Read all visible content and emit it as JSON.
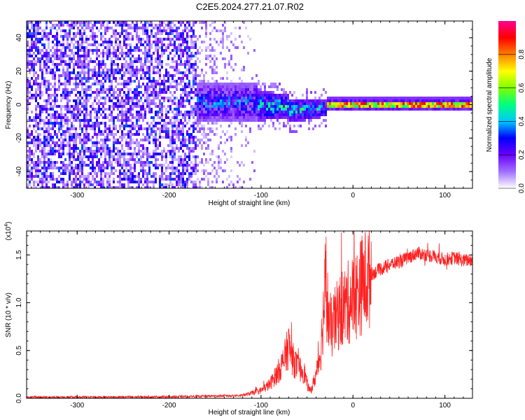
{
  "chart_data": [
    {
      "type": "heatmap",
      "title": "C2E5.2024.277.21.07.R02",
      "xlabel": "Height of straight line (km)",
      "ylabel": "Frequency (Hz)",
      "xlim": [
        -355,
        130
      ],
      "ylim": [
        -50,
        50
      ],
      "xticks": [
        -300,
        -200,
        -100,
        0,
        100
      ],
      "yticks": [
        -40,
        -20,
        0,
        20,
        40
      ],
      "colorbar": {
        "label": "Normalized spectral amplitude",
        "range": [
          0,
          1
        ],
        "ticks": [
          "0.0",
          "0.2",
          "0.4",
          "0.6",
          "0.8"
        ],
        "colors": [
          "#ffffff",
          "#a070ff",
          "#6a00ff",
          "#0000ff",
          "#00c8ff",
          "#00ff80",
          "#7fff00",
          "#ffff00",
          "#ff8000",
          "#ff0000",
          "#ff0090"
        ]
      },
      "regions": [
        {
          "x": [
            -355,
            -170
          ],
          "description": "broadband noise, amplitude 0.05-0.35"
        },
        {
          "x": [
            -170,
            -30
          ],
          "center_hz": 0,
          "peak_amplitude": 0.55
        },
        {
          "x": [
            -30,
            130
          ],
          "center_hz": 1,
          "peak_amplitude": 0.95
        }
      ]
    },
    {
      "type": "line",
      "xlabel": "Height of straight line (km)",
      "ylabel": "SNR (10 * v/v)",
      "yscale_label": "(x10",
      "yscale_exp": "4",
      "xlim": [
        -355,
        130
      ],
      "ylim": [
        0,
        17500
      ],
      "xticks": [
        -300,
        -200,
        -100,
        0,
        100
      ],
      "yticks": [
        0,
        5000,
        10000,
        15000
      ],
      "ytick_labels": [
        "0.0",
        "0.5",
        "1.0",
        "1.5"
      ],
      "color": "#ff2020",
      "series": [
        {
          "x": [
            -355,
            -200,
            -120,
            -100,
            -90,
            -80,
            -75,
            -70,
            -65,
            -60,
            -57,
            -55,
            -52,
            -50,
            -47,
            -45,
            -40,
            -35,
            -32,
            -30,
            -25,
            -20,
            -15,
            -10,
            -5,
            0,
            5,
            10,
            15,
            20,
            30,
            40,
            50,
            60,
            70,
            80,
            90,
            100,
            110,
            120,
            130
          ],
          "values": [
            100,
            150,
            300,
            800,
            1500,
            3000,
            4000,
            5500,
            4000,
            3200,
            3000,
            3000,
            2500,
            1500,
            800,
            1000,
            2500,
            5000,
            9000,
            12000,
            7000,
            8000,
            9000,
            9500,
            10000,
            10500,
            11000,
            12000,
            12500,
            13000,
            13500,
            14000,
            14300,
            14700,
            15200,
            15000,
            14800,
            14500,
            14700,
            14400,
            14500
          ]
        }
      ]
    }
  ]
}
